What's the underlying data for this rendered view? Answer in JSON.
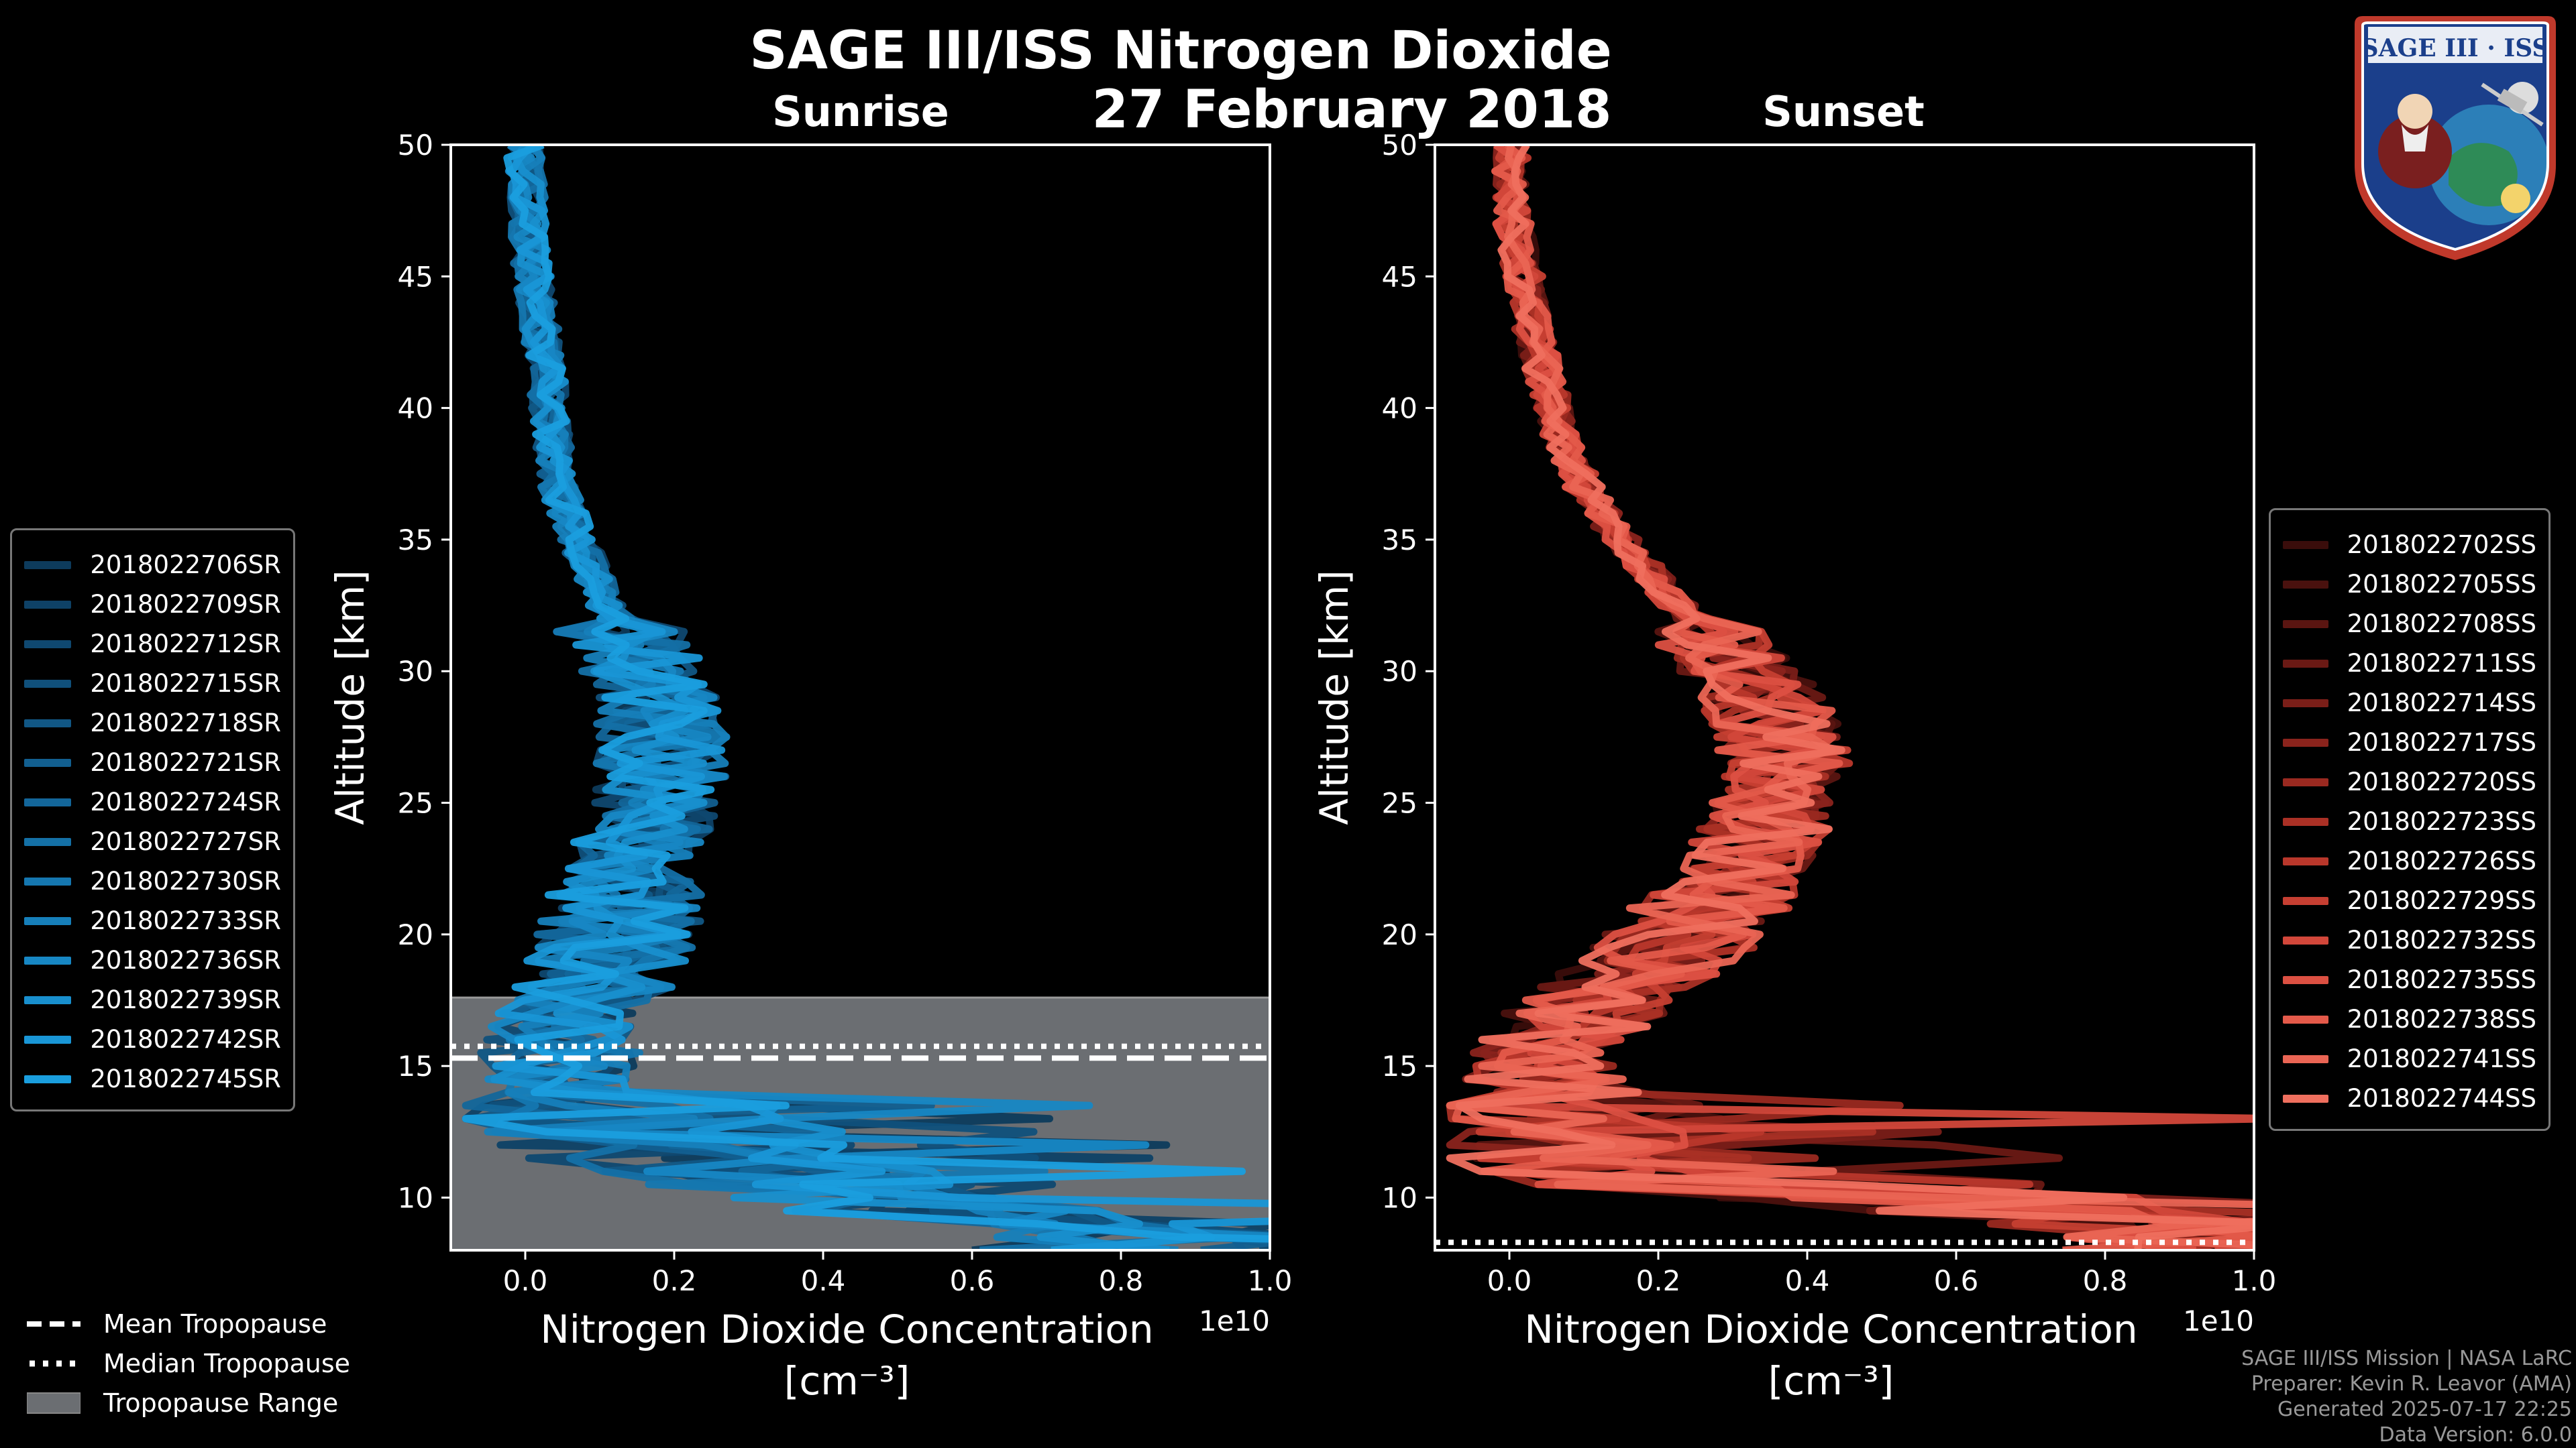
{
  "title": "SAGE III/ISS Nitrogen Dioxide",
  "subtitle_date": "27 February 2018",
  "colors": {
    "sunrise": "#1a94d6",
    "sunset": "#e85a4a",
    "background": "#000000",
    "tropopause_range": "#6b6e72"
  },
  "legend_bottom": {
    "mean": "Mean Tropopause",
    "median": "Median Tropopause",
    "range": "Tropopause Range"
  },
  "footer": {
    "line1": "SAGE III/ISS Mission | NASA LaRC",
    "line2": "Preparer: Kevin R. Leavor (AMA)",
    "line3": "Generated 2025-07-17 22:25",
    "line4": "Data Version: 6.0.0"
  },
  "logo": {
    "text": "SAGE III · ISS",
    "icon": "sage-iii-iss-mission-patch"
  },
  "chart_data": [
    {
      "type": "line",
      "panel": "sunrise",
      "title": "Sunrise",
      "xlabel": "Nitrogen Dioxide Concentration",
      "xlabel_unit": "[cm⁻³]",
      "ylabel": "Altitude [km]",
      "x_multiplier": "1e10",
      "xlim": [
        -0.1,
        1.0
      ],
      "ylim": [
        8,
        50
      ],
      "xticks": [
        "0.0",
        "0.2",
        "0.4",
        "0.6",
        "0.8",
        "1.0"
      ],
      "yticks": [
        "10",
        "15",
        "20",
        "25",
        "30",
        "35",
        "40",
        "45",
        "50"
      ],
      "legend_position": "left",
      "tropopause": {
        "mean_km": 15.3,
        "median_km": 15.75,
        "range_km": [
          8,
          17.6
        ]
      },
      "series_names": [
        "2018022706SR",
        "2018022709SR",
        "2018022712SR",
        "2018022715SR",
        "2018022718SR",
        "2018022721SR",
        "2018022724SR",
        "2018022727SR",
        "2018022730SR",
        "2018022733SR",
        "2018022736SR",
        "2018022739SR",
        "2018022742SR",
        "2018022745SR"
      ],
      "mean_profile": {
        "alt": [
          8.5,
          9.5,
          10.5,
          11.5,
          12.5,
          13.5,
          14.5,
          15.5,
          16.5,
          17.5,
          18.5,
          19.5,
          21,
          23,
          25,
          27,
          29,
          31,
          33,
          35,
          37,
          39,
          41,
          43,
          45,
          47,
          49.5
        ],
        "no2": [
          0.85,
          0.6,
          0.4,
          0.25,
          0.18,
          0.1,
          0.06,
          0.05,
          0.06,
          0.08,
          0.1,
          0.12,
          0.13,
          0.15,
          0.17,
          0.19,
          0.18,
          0.14,
          0.1,
          0.07,
          0.045,
          0.035,
          0.03,
          0.02,
          0.01,
          0.005,
          0.0
        ]
      }
    },
    {
      "type": "line",
      "panel": "sunset",
      "title": "Sunset",
      "xlabel": "Nitrogen Dioxide Concentration",
      "xlabel_unit": "[cm⁻³]",
      "ylabel": "Altitude [km]",
      "x_multiplier": "1e10",
      "xlim": [
        -0.1,
        1.0
      ],
      "ylim": [
        8,
        50
      ],
      "xticks": [
        "0.0",
        "0.2",
        "0.4",
        "0.6",
        "0.8",
        "1.0"
      ],
      "yticks": [
        "10",
        "15",
        "20",
        "25",
        "30",
        "35",
        "40",
        "45",
        "50"
      ],
      "legend_position": "right",
      "tropopause": {
        "median_km": 8.3
      },
      "series_names": [
        "2018022702SS",
        "2018022705SS",
        "2018022708SS",
        "2018022711SS",
        "2018022714SS",
        "2018022717SS",
        "2018022720SS",
        "2018022723SS",
        "2018022726SS",
        "2018022729SS",
        "2018022732SS",
        "2018022735SS",
        "2018022738SS",
        "2018022741SS",
        "2018022744SS"
      ],
      "mean_profile": {
        "alt": [
          8.5,
          9.5,
          10.5,
          11.5,
          12.5,
          13.5,
          14.5,
          15.5,
          16.5,
          17.5,
          18.5,
          19.5,
          21,
          23,
          25,
          27,
          29,
          31,
          33,
          35,
          37,
          39,
          41,
          43,
          45,
          47,
          49.5
        ],
        "no2": [
          0.95,
          0.7,
          0.25,
          0.12,
          0.1,
          0.08,
          0.05,
          0.06,
          0.08,
          0.12,
          0.17,
          0.22,
          0.27,
          0.32,
          0.36,
          0.37,
          0.34,
          0.28,
          0.21,
          0.15,
          0.1,
          0.07,
          0.05,
          0.03,
          0.02,
          0.005,
          0.0
        ]
      }
    }
  ]
}
